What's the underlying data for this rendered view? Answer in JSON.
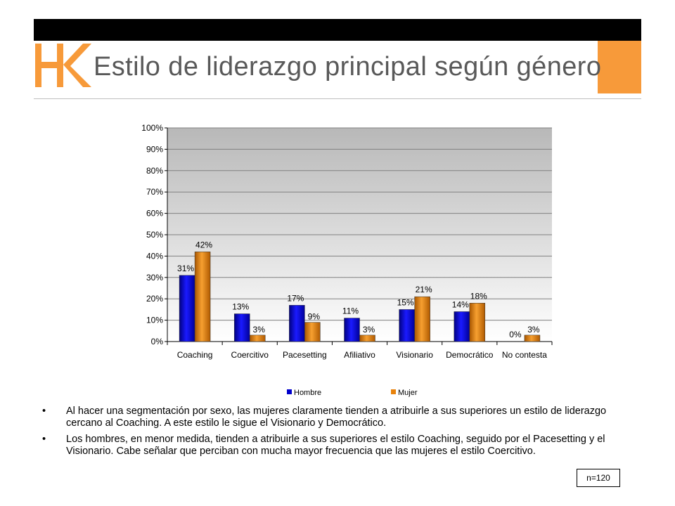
{
  "header": {
    "logo_text": "HK",
    "title": "Estilo de liderazgo principal según género",
    "colors": {
      "bar": "#000000",
      "accent": "#f79a3a",
      "title": "#595959"
    }
  },
  "chart_data": {
    "type": "bar",
    "categories": [
      "Coaching",
      "Coercitivo",
      "Pacesetting",
      "Afiliativo",
      "Visionario",
      "Democrático",
      "No contesta"
    ],
    "series": [
      {
        "name": "Hombre",
        "values": [
          31,
          13,
          17,
          11,
          15,
          14,
          0
        ],
        "labels": [
          "31%",
          "13%",
          "17%",
          "11%",
          "15%",
          "14%",
          "0%"
        ],
        "color": "#0000cc"
      },
      {
        "name": "Mujer",
        "values": [
          42,
          3,
          9,
          3,
          21,
          18,
          3
        ],
        "labels": [
          "42%",
          "3%",
          "9%",
          "3%",
          "21%",
          "18%",
          "3%"
        ],
        "color": "#e8820c"
      }
    ],
    "ylim": [
      0,
      100
    ],
    "yticks": [
      "0%",
      "10%",
      "20%",
      "30%",
      "40%",
      "50%",
      "60%",
      "70%",
      "80%",
      "90%",
      "100%"
    ],
    "grid": true,
    "legend_position": "bottom"
  },
  "bullets": [
    "Al hacer una segmentación por sexo, las mujeres claramente tienden a atribuirle a sus superiores un estilo de liderazgo cercano al Coaching. A este estilo le sigue el Visionario y Democrático.",
    "Los hombres, en menor medida, tienden a atribuirle a sus superiores el estilo Coaching, seguido por el Pacesetting y el Visionario. Cabe señalar que perciban con mucha mayor frecuencia que las mujeres el estilo Coercitivo."
  ],
  "bullet_marker": "•",
  "sample_size": "n=120"
}
